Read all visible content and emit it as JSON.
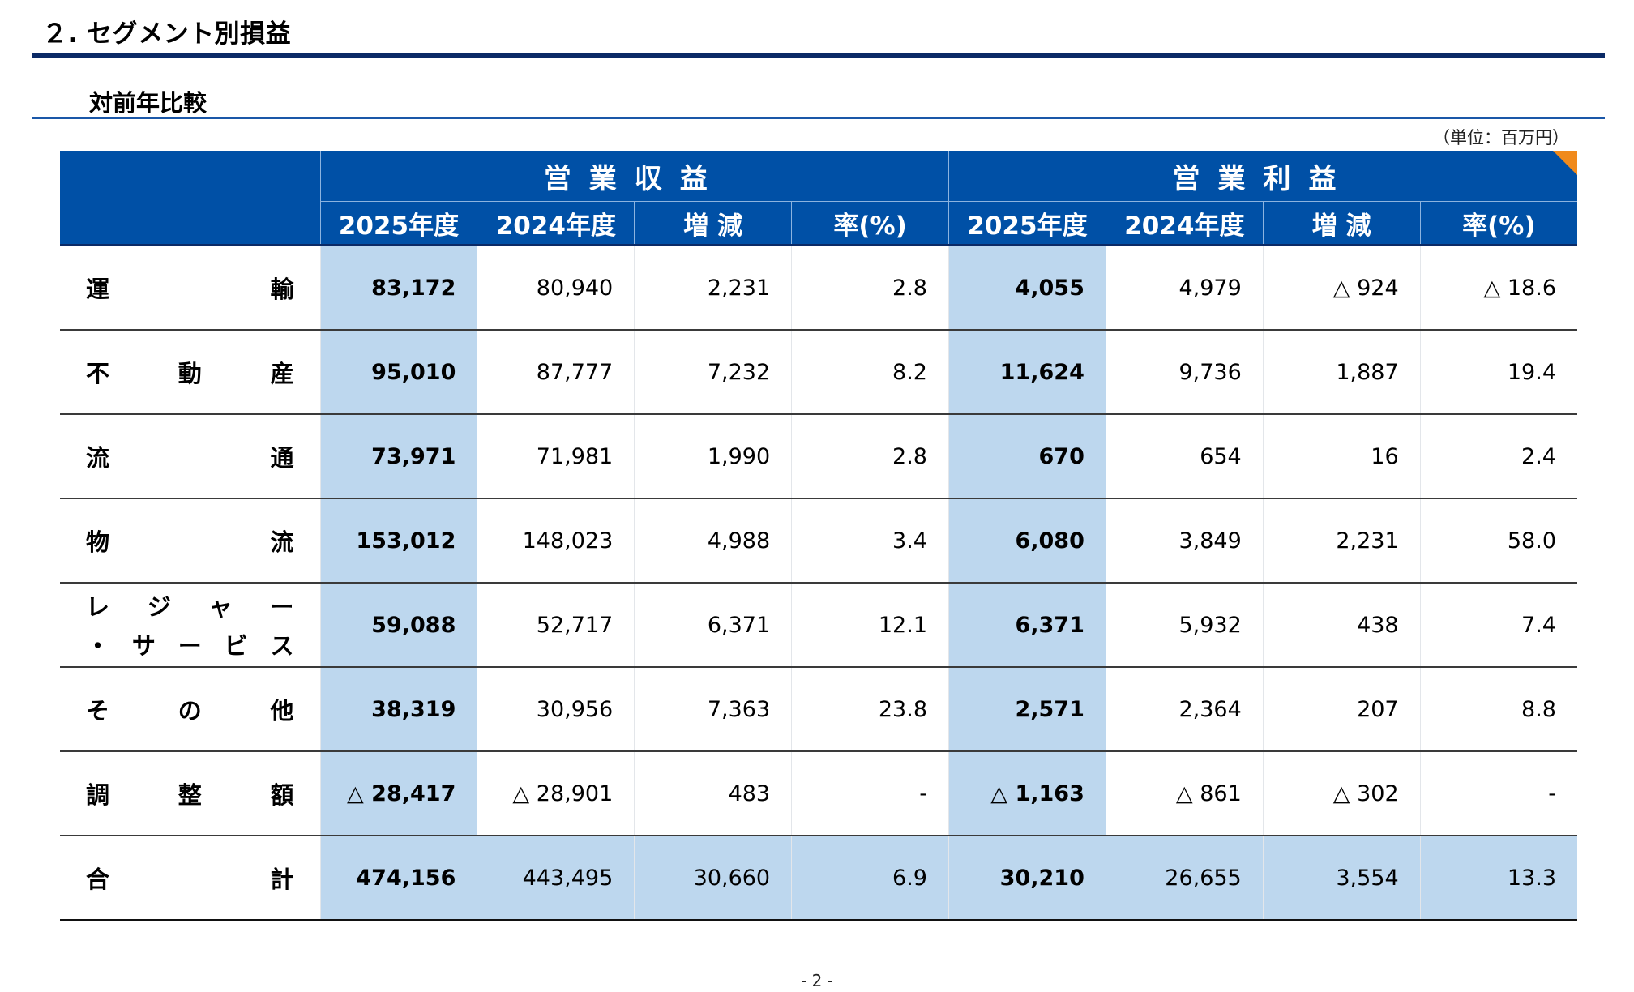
{
  "title": "２. セグメント別損益",
  "subtitle": "対前年比較",
  "unit": "（単位：百万円）",
  "table": {
    "group1": "営業収益",
    "group2": "営業利益",
    "columns": [
      "2025年度",
      "2024年度",
      "増 減",
      "率(%)",
      "2025年度",
      "2024年度",
      "増 減",
      "率(%)"
    ],
    "rows": [
      {
        "label_chars": [
          "運",
          "輸"
        ],
        "values": [
          "83,172",
          "80,940",
          "2,231",
          "2.8",
          "4,055",
          "4,979",
          "△ 924",
          "△ 18.6"
        ]
      },
      {
        "label_chars": [
          "不",
          "動",
          "産"
        ],
        "values": [
          "95,010",
          "87,777",
          "7,232",
          "8.2",
          "11,624",
          "9,736",
          "1,887",
          "19.4"
        ]
      },
      {
        "label_chars": [
          "流",
          "通"
        ],
        "values": [
          "73,971",
          "71,981",
          "1,990",
          "2.8",
          "670",
          "654",
          "16",
          "2.4"
        ]
      },
      {
        "label_chars": [
          "物",
          "流"
        ],
        "values": [
          "153,012",
          "148,023",
          "4,988",
          "3.4",
          "6,080",
          "3,849",
          "2,231",
          "58.0"
        ]
      },
      {
        "label_lines": [
          [
            "レ",
            "ジ",
            "ャ",
            "ー"
          ],
          [
            "・",
            "サ",
            "ー",
            "ビ",
            "ス"
          ]
        ],
        "values": [
          "59,088",
          "52,717",
          "6,371",
          "12.1",
          "6,371",
          "5,932",
          "438",
          "7.4"
        ]
      },
      {
        "label_chars": [
          "そ",
          "の",
          "他"
        ],
        "values": [
          "38,319",
          "30,956",
          "7,363",
          "23.8",
          "2,571",
          "2,364",
          "207",
          "8.8"
        ]
      },
      {
        "label_chars": [
          "調",
          "整",
          "額"
        ],
        "values": [
          "△ 28,417",
          "△ 28,901",
          "483",
          "-",
          "△ 1,163",
          "△ 861",
          "△ 302",
          "-"
        ]
      },
      {
        "label_chars": [
          "合",
          "計"
        ],
        "values": [
          "474,156",
          "443,495",
          "30,660",
          "6.9",
          "30,210",
          "26,655",
          "3,554",
          "13.3"
        ]
      }
    ]
  },
  "page_number": "- 2 -"
}
